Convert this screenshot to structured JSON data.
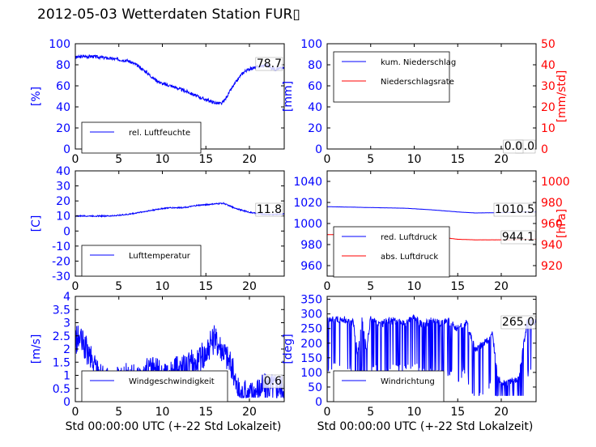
{
  "title": "2012-05-03 Wetterdaten Station FUR▯",
  "colors": {
    "primary": "#0000ff",
    "secondary": "#ff0000",
    "axis": "#000000"
  },
  "chart_data": [
    {
      "id": "humidity",
      "type": "line",
      "xlim": [
        0,
        24
      ],
      "ylim": [
        0,
        100
      ],
      "xticks": [
        0,
        5,
        10,
        15,
        20
      ],
      "yticks": [
        0,
        20,
        40,
        60,
        80,
        100
      ],
      "ylabel": "[%]",
      "xlabel": "",
      "legend_placement": "lower-left",
      "legend_anchor": [
        0.04,
        0.08
      ],
      "annotation": "78.7",
      "series": [
        {
          "name": "rel. Luftfeuchte",
          "color": "#0000ff",
          "noise": 1.5,
          "x": [
            0,
            1,
            2,
            3,
            4,
            5,
            6,
            7,
            8,
            9,
            10,
            11,
            12,
            13,
            14,
            15,
            16,
            16.8,
            17.2,
            18,
            19,
            19.5,
            20,
            21,
            22,
            22.5,
            23,
            24
          ],
          "y": [
            87,
            88,
            88,
            87,
            86,
            85,
            84,
            80,
            74,
            67,
            62,
            60,
            57,
            54,
            50,
            47,
            44,
            43,
            47,
            58,
            70,
            74,
            76,
            78,
            80,
            77,
            76,
            77
          ]
        }
      ]
    },
    {
      "id": "precip",
      "type": "line",
      "xlim": [
        0,
        24
      ],
      "ylim": [
        0,
        100
      ],
      "xticks": [
        0,
        5,
        10,
        15,
        20
      ],
      "yticks": [
        0,
        20,
        40,
        60,
        80,
        100
      ],
      "ylabel": "[mm]",
      "xlabel": "",
      "legend_placement": "upper-left",
      "legend_anchor": [
        0.04,
        0.92
      ],
      "annotation": "0.0",
      "annotation2": "0.0",
      "right_axis": {
        "ylim": [
          0,
          50
        ],
        "yticks": [
          0,
          10,
          20,
          30,
          40,
          50
        ],
        "ylabel": "[mm/std]"
      },
      "series": [
        {
          "name": "kum. Niederschlag",
          "color": "#0000ff",
          "axis": "left",
          "noise": 0,
          "x": [
            0,
            24
          ],
          "y": [
            0,
            0
          ]
        },
        {
          "name": "Niederschlagsrate",
          "color": "#ff0000",
          "axis": "right",
          "noise": 0,
          "x": [
            0,
            24
          ],
          "y": [
            0,
            0
          ]
        }
      ]
    },
    {
      "id": "temperature",
      "type": "line",
      "xlim": [
        0,
        24
      ],
      "ylim": [
        -30,
        40
      ],
      "xticks": [
        0,
        5,
        10,
        15,
        20
      ],
      "yticks": [
        -30,
        -20,
        -10,
        0,
        10,
        20,
        30,
        40
      ],
      "ylabel": "[C]",
      "xlabel": "",
      "legend_placement": "lower-left",
      "legend_anchor": [
        0.04,
        0.08
      ],
      "annotation": "11.8",
      "series": [
        {
          "name": "Lufttemperatur",
          "color": "#0000ff",
          "noise": 0.4,
          "x": [
            0,
            2,
            4,
            5,
            6,
            7,
            8,
            9,
            10,
            11,
            12,
            13,
            14,
            15,
            16,
            17,
            18,
            19,
            20,
            21,
            22,
            23,
            24
          ],
          "y": [
            10,
            10,
            10,
            10.5,
            11,
            12,
            13,
            14,
            15,
            15.5,
            15.5,
            16,
            17,
            17.5,
            18,
            18.5,
            16,
            14,
            12.5,
            11.5,
            11,
            11,
            11.5
          ]
        }
      ]
    },
    {
      "id": "pressure",
      "type": "line",
      "xlim": [
        0,
        24
      ],
      "ylim": [
        950,
        1050
      ],
      "xticks": [
        0,
        5,
        10,
        15,
        20
      ],
      "yticks": [
        960,
        980,
        1000,
        1020,
        1040
      ],
      "ylabel": "",
      "xlabel": "",
      "legend_placement": "lower-left",
      "legend_anchor": [
        0.04,
        0.08
      ],
      "annotation": "1010.5",
      "annotation2": "944.1",
      "right_axis": {
        "ylim": [
          910,
          1010
        ],
        "yticks": [
          920,
          940,
          960,
          980,
          1000
        ],
        "ylabel": "[hPa]"
      },
      "series": [
        {
          "name": "red. Luftdruck",
          "color": "#0000ff",
          "axis": "left",
          "noise": 0.05,
          "x": [
            0,
            3,
            6,
            9,
            12,
            15,
            17,
            19,
            21,
            22,
            24
          ],
          "y": [
            1016,
            1015.5,
            1015,
            1014.5,
            1013,
            1011,
            1010,
            1010.2,
            1010.5,
            1011,
            1011
          ]
        },
        {
          "name": "abs. Luftdruck",
          "color": "#ff0000",
          "axis": "right",
          "noise": 0.05,
          "x": [
            0,
            3,
            6,
            9,
            12,
            14,
            15,
            17,
            19,
            21,
            22,
            24
          ],
          "y": [
            949.5,
            949,
            948.5,
            948,
            947,
            946,
            945,
            944.5,
            944.5,
            944.5,
            945,
            945
          ]
        }
      ]
    },
    {
      "id": "wind_speed",
      "type": "line",
      "xlim": [
        0,
        24
      ],
      "ylim": [
        0,
        4
      ],
      "xticks": [
        0,
        5,
        10,
        15,
        20
      ],
      "yticks": [
        0,
        0.5,
        1,
        1.5,
        2,
        2.5,
        3,
        3.5,
        4
      ],
      "ylabel": "[m/s]",
      "xlabel": "Std 00:00:00 UTC (+-22 Std Lokalzeit)",
      "legend_placement": "lower-left",
      "legend_anchor": [
        0.04,
        0.08
      ],
      "annotation": "0.6",
      "series": [
        {
          "name": "Windgeschwindigkeit",
          "color": "#0000ff",
          "noise": 0.55,
          "x": [
            0,
            0.5,
            1,
            2,
            3,
            4,
            5,
            6,
            7,
            8,
            9,
            10,
            11,
            12,
            13,
            14,
            15,
            16,
            17,
            18,
            18.5,
            19,
            20,
            21,
            22,
            23,
            24
          ],
          "y": [
            2.3,
            2.4,
            2.1,
            1.5,
            1.0,
            0.7,
            0.8,
            1.0,
            0.9,
            1.1,
            1.2,
            1.0,
            1.0,
            1.3,
            1.4,
            1.5,
            1.9,
            2.4,
            2.0,
            1.3,
            0.6,
            0.3,
            0.3,
            0.5,
            0.6,
            0.6,
            0.6
          ]
        }
      ]
    },
    {
      "id": "wind_direction",
      "type": "line",
      "xlim": [
        0,
        24
      ],
      "ylim": [
        0,
        360
      ],
      "xticks": [
        0,
        5,
        10,
        15,
        20
      ],
      "yticks": [
        0,
        50,
        100,
        150,
        200,
        250,
        300,
        350
      ],
      "ylabel": "[deg]",
      "xlabel": "Std 00:00:00 UTC (+-22 Std Lokalzeit)",
      "legend_placement": "lower-left",
      "legend_anchor": [
        0.04,
        0.08
      ],
      "annotation": "265.0",
      "series": [
        {
          "name": "Windrichtung",
          "color": "#0000ff",
          "noise": 0,
          "x": [
            0,
            1,
            2,
            3,
            3.5,
            4,
            4.5,
            5,
            6,
            7,
            8,
            9,
            10,
            11,
            12,
            13,
            14,
            15,
            16,
            17,
            18,
            19,
            19.5,
            20,
            21,
            22,
            23,
            24
          ],
          "y": [
            282,
            280,
            282,
            270,
            160,
            280,
            180,
            285,
            260,
            278,
            275,
            270,
            285,
            260,
            280,
            270,
            275,
            250,
            270,
            180,
            200,
            230,
            100,
            60,
            70,
            80,
            275,
            270
          ]
        }
      ]
    }
  ]
}
